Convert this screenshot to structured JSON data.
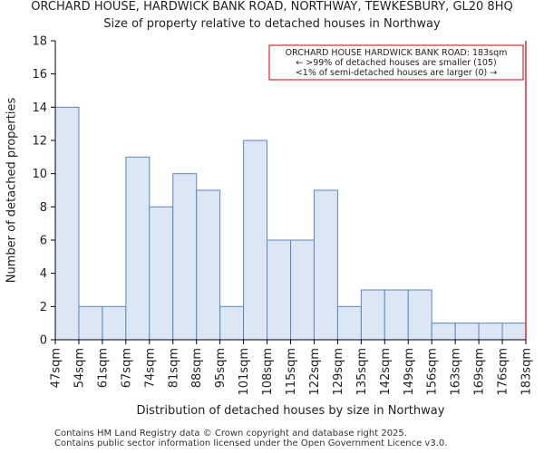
{
  "header": {
    "title": "ORCHARD HOUSE, HARDWICK BANK ROAD, NORTHWAY, TEWKESBURY, GL20 8HQ",
    "subtitle": "Size of property relative to detached houses in Northway"
  },
  "footer": {
    "line1": "Contains HM Land Registry data © Crown copyright and database right 2025.",
    "line2": "Contains public sector information licensed under the Open Government Licence v3.0."
  },
  "colors": {
    "bar_fill": "#dce6f4",
    "bar_stroke": "#5b87c4",
    "marker": "#cc0000",
    "axis": "#000000"
  },
  "chart_data": {
    "type": "bar",
    "title": "ORCHARD HOUSE, HARDWICK BANK ROAD, NORTHWAY, TEWKESBURY, GL20 8HQ",
    "subtitle": "Size of property relative to detached houses in Northway",
    "xlabel": "Distribution of detached houses by size in Northway",
    "ylabel": "Number of detached properties",
    "bin_edges": [
      "47sqm",
      "54sqm",
      "61sqm",
      "67sqm",
      "74sqm",
      "81sqm",
      "88sqm",
      "95sqm",
      "101sqm",
      "108sqm",
      "115sqm",
      "122sqm",
      "129sqm",
      "135sqm",
      "142sqm",
      "149sqm",
      "156sqm",
      "163sqm",
      "169sqm",
      "176sqm",
      "183sqm"
    ],
    "values": [
      14,
      2,
      2,
      11,
      8,
      10,
      9,
      2,
      12,
      6,
      6,
      9,
      2,
      3,
      3,
      3,
      1,
      1,
      1,
      1
    ],
    "ylim": [
      0,
      18
    ],
    "yticks": [
      0,
      2,
      4,
      6,
      8,
      10,
      12,
      14,
      16,
      18
    ],
    "marker": {
      "value_label": "183sqm",
      "bin_index": 20
    },
    "annotation": {
      "line1": "ORCHARD HOUSE HARDWICK BANK ROAD: 183sqm",
      "line2": "← >99% of detached houses are smaller (105)",
      "line3": "<1% of semi-detached houses are larger (0) →"
    }
  }
}
